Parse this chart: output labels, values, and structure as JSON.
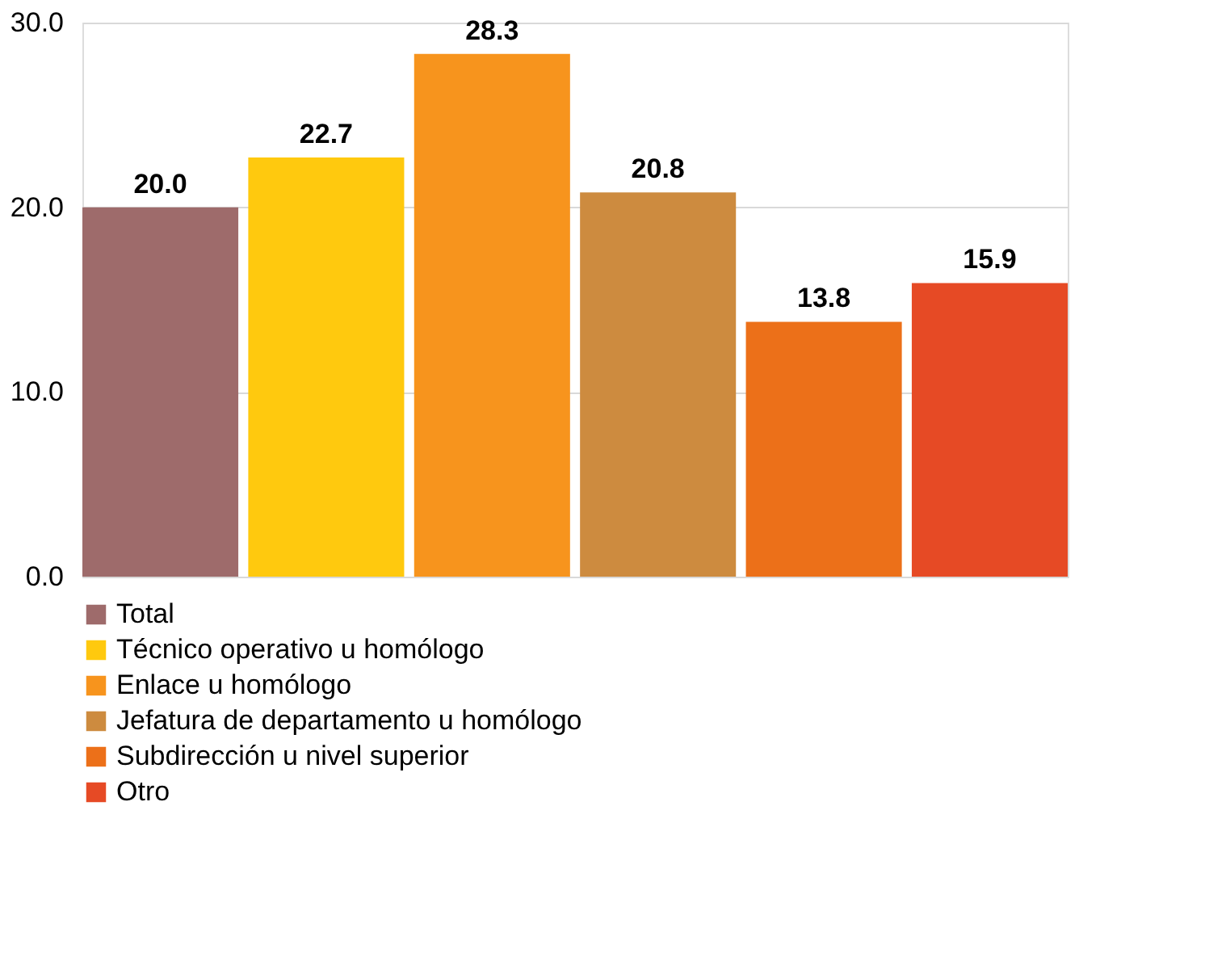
{
  "chart_data": {
    "type": "bar",
    "categories": [
      null
    ],
    "series": [
      {
        "name": "Total",
        "color": "#9e6b6b",
        "values": [
          20.0
        ],
        "value_labels": [
          "20.0"
        ]
      },
      {
        "name": "Técnico operativo u homólogo",
        "color": "#ffc90e",
        "values": [
          22.7
        ],
        "value_labels": [
          "22.7"
        ]
      },
      {
        "name": "Enlace u homólogo",
        "color": "#f7941d",
        "values": [
          28.3
        ],
        "value_labels": [
          "28.3"
        ]
      },
      {
        "name": "Jefatura de departamento u homólogo",
        "color": "#cd8b3f",
        "values": [
          20.8
        ],
        "value_labels": [
          "20.8"
        ]
      },
      {
        "name": "Subdirección u nivel superior",
        "color": "#ec7019",
        "values": [
          13.8
        ],
        "value_labels": [
          "13.8"
        ]
      },
      {
        "name": "Otro",
        "color": "#e64a25",
        "values": [
          15.9
        ],
        "value_labels": [
          "15.9"
        ]
      }
    ],
    "ylim": [
      0,
      30
    ],
    "yticks": [
      {
        "value": 0,
        "label": "0.0"
      },
      {
        "value": 10,
        "label": "10.0"
      },
      {
        "value": 20,
        "label": "20.0"
      },
      {
        "value": 30,
        "label": "30.0"
      }
    ],
    "grid": "y",
    "legend": "bottom",
    "tick_labels": "y"
  }
}
